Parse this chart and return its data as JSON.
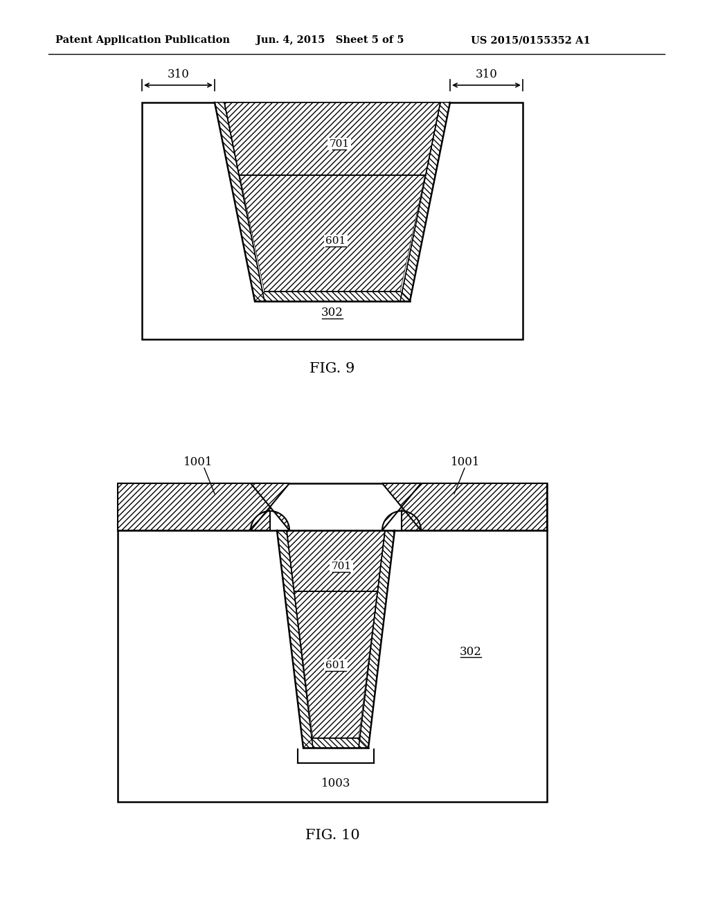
{
  "bg_color": "#ffffff",
  "header_left": "Patent Application Publication",
  "header_center": "Jun. 4, 2015   Sheet 5 of 5",
  "header_right": "US 2015/0155352 A1",
  "fig9_label": "FIG. 9",
  "fig10_label": "FIG. 10",
  "label_302_fig9": "302",
  "label_601_fig9": "601",
  "label_701_fig9": "701",
  "label_310_left": "310",
  "label_310_right": "310",
  "label_302_fig10": "302",
  "label_601_fig10": "601",
  "label_701_fig10": "701",
  "label_1001_left": "1001",
  "label_1001_right": "1001",
  "label_1003": "1003"
}
